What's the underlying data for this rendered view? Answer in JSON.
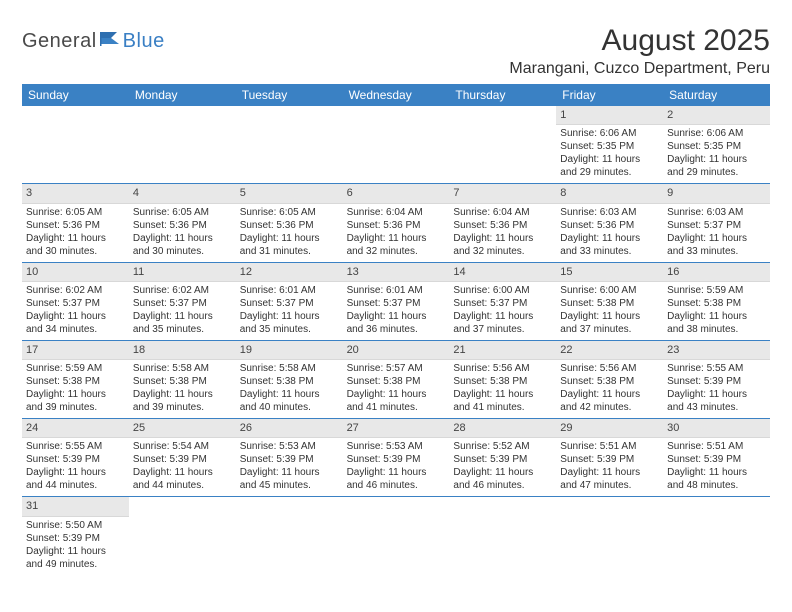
{
  "logo": {
    "textA": "General",
    "textB": "Blue"
  },
  "title": "August 2025",
  "location": "Marangani, Cuzco Department, Peru",
  "colors": {
    "headerBg": "#3a81c4",
    "headerText": "#ffffff",
    "dayNumBg": "#e8e8e8",
    "rowBorder": "#3a81c4",
    "bodyText": "#333333",
    "logoGray": "#4a4a4a",
    "logoBlue": "#3a7fc4"
  },
  "weekdays": [
    "Sunday",
    "Monday",
    "Tuesday",
    "Wednesday",
    "Thursday",
    "Friday",
    "Saturday"
  ],
  "weeks": [
    [
      null,
      null,
      null,
      null,
      null,
      {
        "n": "1",
        "sunrise": "Sunrise: 6:06 AM",
        "sunset": "Sunset: 5:35 PM",
        "daylight": "Daylight: 11 hours and 29 minutes."
      },
      {
        "n": "2",
        "sunrise": "Sunrise: 6:06 AM",
        "sunset": "Sunset: 5:35 PM",
        "daylight": "Daylight: 11 hours and 29 minutes."
      }
    ],
    [
      {
        "n": "3",
        "sunrise": "Sunrise: 6:05 AM",
        "sunset": "Sunset: 5:36 PM",
        "daylight": "Daylight: 11 hours and 30 minutes."
      },
      {
        "n": "4",
        "sunrise": "Sunrise: 6:05 AM",
        "sunset": "Sunset: 5:36 PM",
        "daylight": "Daylight: 11 hours and 30 minutes."
      },
      {
        "n": "5",
        "sunrise": "Sunrise: 6:05 AM",
        "sunset": "Sunset: 5:36 PM",
        "daylight": "Daylight: 11 hours and 31 minutes."
      },
      {
        "n": "6",
        "sunrise": "Sunrise: 6:04 AM",
        "sunset": "Sunset: 5:36 PM",
        "daylight": "Daylight: 11 hours and 32 minutes."
      },
      {
        "n": "7",
        "sunrise": "Sunrise: 6:04 AM",
        "sunset": "Sunset: 5:36 PM",
        "daylight": "Daylight: 11 hours and 32 minutes."
      },
      {
        "n": "8",
        "sunrise": "Sunrise: 6:03 AM",
        "sunset": "Sunset: 5:36 PM",
        "daylight": "Daylight: 11 hours and 33 minutes."
      },
      {
        "n": "9",
        "sunrise": "Sunrise: 6:03 AM",
        "sunset": "Sunset: 5:37 PM",
        "daylight": "Daylight: 11 hours and 33 minutes."
      }
    ],
    [
      {
        "n": "10",
        "sunrise": "Sunrise: 6:02 AM",
        "sunset": "Sunset: 5:37 PM",
        "daylight": "Daylight: 11 hours and 34 minutes."
      },
      {
        "n": "11",
        "sunrise": "Sunrise: 6:02 AM",
        "sunset": "Sunset: 5:37 PM",
        "daylight": "Daylight: 11 hours and 35 minutes."
      },
      {
        "n": "12",
        "sunrise": "Sunrise: 6:01 AM",
        "sunset": "Sunset: 5:37 PM",
        "daylight": "Daylight: 11 hours and 35 minutes."
      },
      {
        "n": "13",
        "sunrise": "Sunrise: 6:01 AM",
        "sunset": "Sunset: 5:37 PM",
        "daylight": "Daylight: 11 hours and 36 minutes."
      },
      {
        "n": "14",
        "sunrise": "Sunrise: 6:00 AM",
        "sunset": "Sunset: 5:37 PM",
        "daylight": "Daylight: 11 hours and 37 minutes."
      },
      {
        "n": "15",
        "sunrise": "Sunrise: 6:00 AM",
        "sunset": "Sunset: 5:38 PM",
        "daylight": "Daylight: 11 hours and 37 minutes."
      },
      {
        "n": "16",
        "sunrise": "Sunrise: 5:59 AM",
        "sunset": "Sunset: 5:38 PM",
        "daylight": "Daylight: 11 hours and 38 minutes."
      }
    ],
    [
      {
        "n": "17",
        "sunrise": "Sunrise: 5:59 AM",
        "sunset": "Sunset: 5:38 PM",
        "daylight": "Daylight: 11 hours and 39 minutes."
      },
      {
        "n": "18",
        "sunrise": "Sunrise: 5:58 AM",
        "sunset": "Sunset: 5:38 PM",
        "daylight": "Daylight: 11 hours and 39 minutes."
      },
      {
        "n": "19",
        "sunrise": "Sunrise: 5:58 AM",
        "sunset": "Sunset: 5:38 PM",
        "daylight": "Daylight: 11 hours and 40 minutes."
      },
      {
        "n": "20",
        "sunrise": "Sunrise: 5:57 AM",
        "sunset": "Sunset: 5:38 PM",
        "daylight": "Daylight: 11 hours and 41 minutes."
      },
      {
        "n": "21",
        "sunrise": "Sunrise: 5:56 AM",
        "sunset": "Sunset: 5:38 PM",
        "daylight": "Daylight: 11 hours and 41 minutes."
      },
      {
        "n": "22",
        "sunrise": "Sunrise: 5:56 AM",
        "sunset": "Sunset: 5:38 PM",
        "daylight": "Daylight: 11 hours and 42 minutes."
      },
      {
        "n": "23",
        "sunrise": "Sunrise: 5:55 AM",
        "sunset": "Sunset: 5:39 PM",
        "daylight": "Daylight: 11 hours and 43 minutes."
      }
    ],
    [
      {
        "n": "24",
        "sunrise": "Sunrise: 5:55 AM",
        "sunset": "Sunset: 5:39 PM",
        "daylight": "Daylight: 11 hours and 44 minutes."
      },
      {
        "n": "25",
        "sunrise": "Sunrise: 5:54 AM",
        "sunset": "Sunset: 5:39 PM",
        "daylight": "Daylight: 11 hours and 44 minutes."
      },
      {
        "n": "26",
        "sunrise": "Sunrise: 5:53 AM",
        "sunset": "Sunset: 5:39 PM",
        "daylight": "Daylight: 11 hours and 45 minutes."
      },
      {
        "n": "27",
        "sunrise": "Sunrise: 5:53 AM",
        "sunset": "Sunset: 5:39 PM",
        "daylight": "Daylight: 11 hours and 46 minutes."
      },
      {
        "n": "28",
        "sunrise": "Sunrise: 5:52 AM",
        "sunset": "Sunset: 5:39 PM",
        "daylight": "Daylight: 11 hours and 46 minutes."
      },
      {
        "n": "29",
        "sunrise": "Sunrise: 5:51 AM",
        "sunset": "Sunset: 5:39 PM",
        "daylight": "Daylight: 11 hours and 47 minutes."
      },
      {
        "n": "30",
        "sunrise": "Sunrise: 5:51 AM",
        "sunset": "Sunset: 5:39 PM",
        "daylight": "Daylight: 11 hours and 48 minutes."
      }
    ],
    [
      {
        "n": "31",
        "sunrise": "Sunrise: 5:50 AM",
        "sunset": "Sunset: 5:39 PM",
        "daylight": "Daylight: 11 hours and 49 minutes."
      },
      null,
      null,
      null,
      null,
      null,
      null
    ]
  ]
}
